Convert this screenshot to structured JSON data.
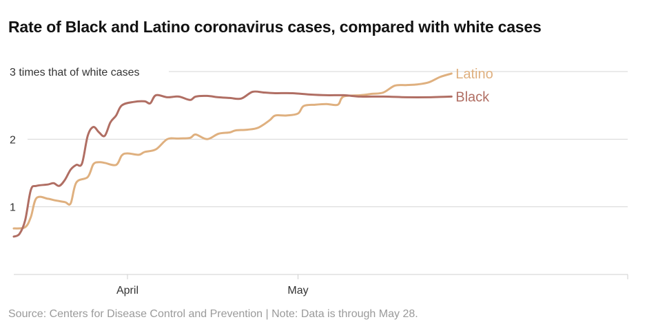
{
  "chart_data": {
    "type": "line",
    "title": "Rate of Black and Latino coronavirus cases, compared with white cases",
    "note": "Source: Centers for Disease Control and Prevention | Note: Data is through May 28.",
    "x_ticks": [
      {
        "label": "April",
        "date": "2020-04-01"
      },
      {
        "label": "May",
        "date": "2020-05-01"
      }
    ],
    "y_ticks": [
      {
        "value": 1,
        "label": "1"
      },
      {
        "value": 2,
        "label": "2"
      },
      {
        "value": 3,
        "label": "3 times that of white cases"
      }
    ],
    "xlim": [
      "2020-03-12",
      "2020-06-28"
    ],
    "ylim": [
      0,
      3
    ],
    "grid": true,
    "series": [
      {
        "name": "Latino",
        "color": "#dfb07f",
        "points": [
          [
            "2020-03-12",
            0.68
          ],
          [
            "2020-03-14",
            0.7
          ],
          [
            "2020-03-15",
            0.85
          ],
          [
            "2020-03-16",
            1.13
          ],
          [
            "2020-03-18",
            1.12
          ],
          [
            "2020-03-19",
            1.1
          ],
          [
            "2020-03-21",
            1.07
          ],
          [
            "2020-03-22",
            1.05
          ],
          [
            "2020-03-23",
            1.36
          ],
          [
            "2020-03-25",
            1.44
          ],
          [
            "2020-03-26",
            1.63
          ],
          [
            "2020-03-27",
            1.66
          ],
          [
            "2020-03-28",
            1.65
          ],
          [
            "2020-03-30",
            1.62
          ],
          [
            "2020-03-31",
            1.76
          ],
          [
            "2020-04-01",
            1.79
          ],
          [
            "2020-04-03",
            1.77
          ],
          [
            "2020-04-04",
            1.81
          ],
          [
            "2020-04-06",
            1.85
          ],
          [
            "2020-04-08",
            2.0
          ],
          [
            "2020-04-10",
            2.01
          ],
          [
            "2020-04-12",
            2.02
          ],
          [
            "2020-04-13",
            2.07
          ],
          [
            "2020-04-15",
            2.0
          ],
          [
            "2020-04-17",
            2.08
          ],
          [
            "2020-04-19",
            2.1
          ],
          [
            "2020-04-20",
            2.13
          ],
          [
            "2020-04-22",
            2.14
          ],
          [
            "2020-04-24",
            2.17
          ],
          [
            "2020-04-26",
            2.28
          ],
          [
            "2020-04-27",
            2.35
          ],
          [
            "2020-04-29",
            2.35
          ],
          [
            "2020-05-01",
            2.38
          ],
          [
            "2020-05-02",
            2.49
          ],
          [
            "2020-05-04",
            2.51
          ],
          [
            "2020-05-06",
            2.52
          ],
          [
            "2020-05-08",
            2.51
          ],
          [
            "2020-05-09",
            2.63
          ],
          [
            "2020-05-12",
            2.65
          ],
          [
            "2020-05-14",
            2.67
          ],
          [
            "2020-05-16",
            2.69
          ],
          [
            "2020-05-18",
            2.79
          ],
          [
            "2020-05-20",
            2.8
          ],
          [
            "2020-05-22",
            2.81
          ],
          [
            "2020-05-24",
            2.84
          ],
          [
            "2020-05-26",
            2.92
          ],
          [
            "2020-05-28",
            2.97
          ]
        ]
      },
      {
        "name": "Black",
        "color": "#b06e63",
        "points": [
          [
            "2020-03-12",
            0.56
          ],
          [
            "2020-03-13",
            0.6
          ],
          [
            "2020-03-14",
            0.8
          ],
          [
            "2020-03-15",
            1.25
          ],
          [
            "2020-03-16",
            1.31
          ],
          [
            "2020-03-18",
            1.33
          ],
          [
            "2020-03-19",
            1.35
          ],
          [
            "2020-03-20",
            1.31
          ],
          [
            "2020-03-21",
            1.4
          ],
          [
            "2020-03-22",
            1.55
          ],
          [
            "2020-03-23",
            1.62
          ],
          [
            "2020-03-24",
            1.64
          ],
          [
            "2020-03-25",
            2.05
          ],
          [
            "2020-03-26",
            2.18
          ],
          [
            "2020-03-27",
            2.1
          ],
          [
            "2020-03-28",
            2.05
          ],
          [
            "2020-03-29",
            2.25
          ],
          [
            "2020-03-30",
            2.35
          ],
          [
            "2020-03-31",
            2.5
          ],
          [
            "2020-04-02",
            2.55
          ],
          [
            "2020-04-04",
            2.56
          ],
          [
            "2020-04-05",
            2.53
          ],
          [
            "2020-04-06",
            2.65
          ],
          [
            "2020-04-08",
            2.62
          ],
          [
            "2020-04-10",
            2.63
          ],
          [
            "2020-04-12",
            2.58
          ],
          [
            "2020-04-13",
            2.63
          ],
          [
            "2020-04-15",
            2.64
          ],
          [
            "2020-04-17",
            2.62
          ],
          [
            "2020-04-19",
            2.61
          ],
          [
            "2020-04-21",
            2.6
          ],
          [
            "2020-04-23",
            2.7
          ],
          [
            "2020-04-25",
            2.69
          ],
          [
            "2020-04-27",
            2.68
          ],
          [
            "2020-04-30",
            2.68
          ],
          [
            "2020-05-03",
            2.66
          ],
          [
            "2020-05-06",
            2.65
          ],
          [
            "2020-05-09",
            2.65
          ],
          [
            "2020-05-12",
            2.63
          ],
          [
            "2020-05-16",
            2.63
          ],
          [
            "2020-05-20",
            2.62
          ],
          [
            "2020-05-24",
            2.62
          ],
          [
            "2020-05-28",
            2.63
          ]
        ]
      }
    ]
  }
}
